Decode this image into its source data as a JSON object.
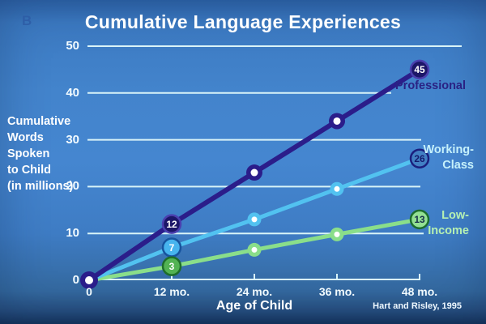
{
  "slide": {
    "watermark": "B"
  },
  "chart_data": {
    "type": "line",
    "title": "Cumulative Language Experiences",
    "xlabel": "Age of Child",
    "ylabel": "Cumulative\nWords\nSpoken\nto Child\n(in millions)",
    "source": "Hart and Risley, 1995",
    "xlim": [
      0,
      48
    ],
    "ylim": [
      0,
      50
    ],
    "x": [
      0,
      12,
      24,
      36,
      48
    ],
    "xtick_labels": [
      "0",
      "12 mo.",
      "24 mo.",
      "36 mo.",
      "48 mo."
    ],
    "yticks": [
      0,
      10,
      20,
      30,
      40,
      50
    ],
    "grid": true,
    "grid_color": "#d9f4f8",
    "axis_color": "#d9f4f8",
    "legend_position": "right-of-line-ends",
    "series": [
      {
        "name": "Professional",
        "label_lines": [
          "Professional"
        ],
        "label_color": "#2a2284",
        "line_color": "#2b1d8a",
        "values": [
          0,
          12,
          23,
          34,
          45
        ],
        "labeled_points": [
          {
            "index": 1,
            "label": "12",
            "fill": "#1c1668",
            "ring": "#4a3fae",
            "text_color": "#ffffff"
          },
          {
            "index": 4,
            "label": "45",
            "fill": "#1c1668",
            "ring": "#4a3fae",
            "text_color": "#ffffff"
          }
        ]
      },
      {
        "name": "Working-Class",
        "label_lines": [
          "Working-",
          "Class"
        ],
        "label_color": "#c6f1fb",
        "line_color": "#52c2f0",
        "values": [
          0,
          7,
          13,
          19.5,
          26
        ],
        "labeled_points": [
          {
            "index": 1,
            "label": "7",
            "fill": "#47b4ee",
            "ring": "#17549e",
            "text_color": "#ffffff"
          },
          {
            "index": 4,
            "label": "26",
            "fill": "#4280c4",
            "ring": "#1b1f7e",
            "text_color": "#141b6e"
          }
        ]
      },
      {
        "name": "Low-Income",
        "label_lines": [
          "Low-",
          "Income"
        ],
        "label_color": "#b6f0b2",
        "line_color": "#8ade8a",
        "values": [
          0,
          3,
          6.5,
          9.8,
          13
        ],
        "labeled_points": [
          {
            "index": 1,
            "label": "3",
            "fill": "#53b353",
            "ring": "#1e6e2a",
            "text_color": "#ffffff"
          },
          {
            "index": 4,
            "label": "13",
            "fill": "#93e093",
            "ring": "#1c6e2e",
            "text_color": "#17304a"
          }
        ]
      }
    ]
  }
}
